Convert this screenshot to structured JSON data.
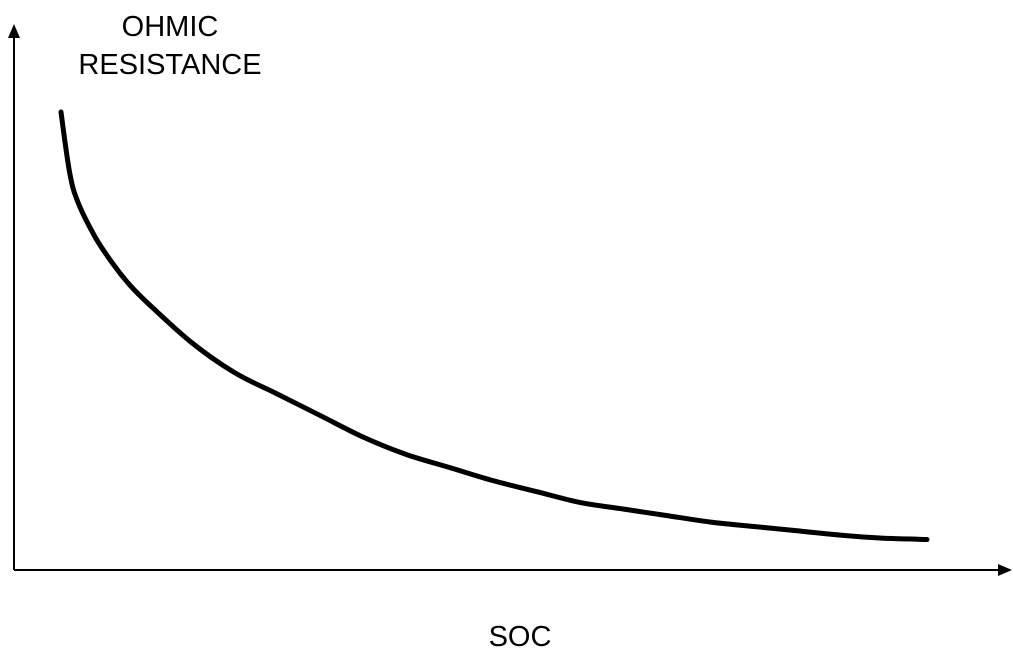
{
  "chart_data": {
    "type": "line",
    "title": "",
    "ylabel": "OHMIC\nRESISTANCE",
    "xlabel": "SOC",
    "xlim": [
      0,
      100
    ],
    "ylim": [
      0,
      100
    ],
    "grid": false,
    "ticks": false,
    "line_color": "#000000",
    "series": [
      {
        "x": [
          0,
          1,
          2,
          4,
          6,
          8,
          10,
          15,
          20,
          25,
          30,
          35,
          40,
          45,
          50,
          55,
          60,
          65,
          70,
          75,
          80,
          85,
          90,
          95,
          100
        ],
        "y": [
          100,
          86,
          79,
          71,
          65,
          60,
          56,
          47,
          40,
          35,
          30,
          25,
          21,
          18,
          15,
          12.5,
          10,
          8.5,
          7,
          5.5,
          4.5,
          3.5,
          2.5,
          1.8,
          1.5
        ]
      }
    ]
  }
}
